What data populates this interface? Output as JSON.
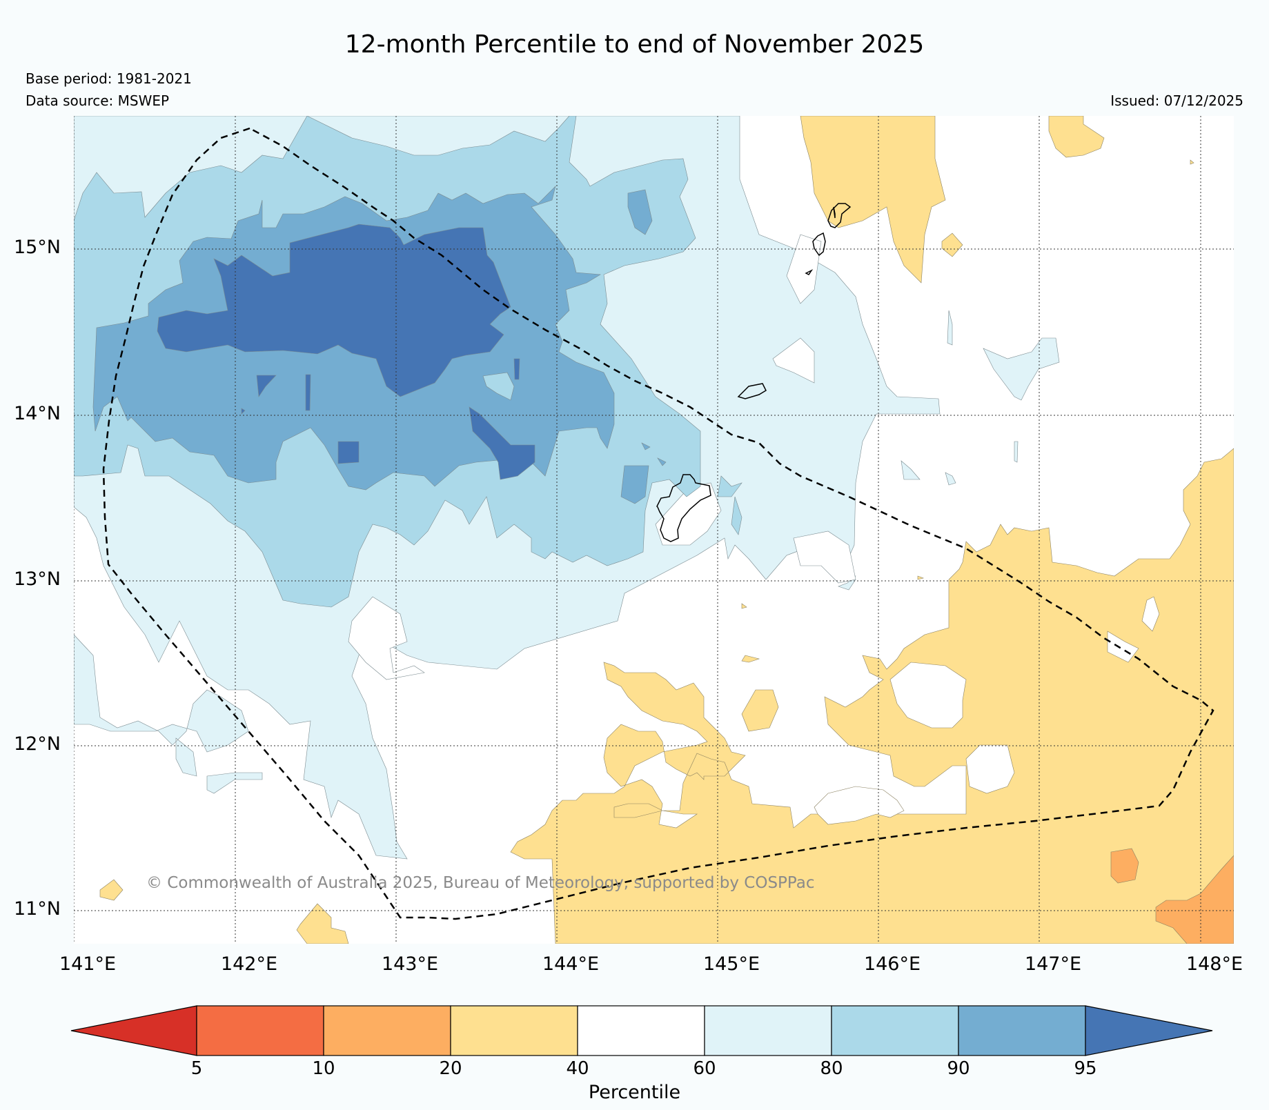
{
  "title": "12-month Percentile to end of November 2025",
  "base_period": "Base period: 1981-2021",
  "data_source": "Data source: MSWEP",
  "issued": "Issued: 07/12/2025",
  "copyright": "© Commonwealth of Australia 2025, Bureau of Meteorology, supported by COSPPac",
  "x_axis": {
    "ticks": [
      "141°E",
      "142°E",
      "143°E",
      "144°E",
      "145°E",
      "146°E",
      "147°E",
      "148°E"
    ]
  },
  "y_axis": {
    "ticks": [
      "15°N",
      "14°N",
      "13°N",
      "12°N",
      "11°N"
    ]
  },
  "colorbar": {
    "label": "Percentile",
    "ticks": [
      "5",
      "10",
      "20",
      "40",
      "60",
      "80",
      "90",
      "95"
    ],
    "colors": [
      "#d73027",
      "#f46d43",
      "#fdae61",
      "#fee090",
      "#ffffff",
      "#e0f3f8",
      "#abd9e9",
      "#74add1",
      "#4575b4"
    ]
  },
  "colors": {
    "background": "#f8fcfd",
    "p20_40": "#fee090",
    "p10_20": "#fdae61",
    "p60_80": "#e0f3f8",
    "p80_90": "#abd9e9",
    "p90_95": "#74add1",
    "p95_plus": "#4575b4"
  }
}
